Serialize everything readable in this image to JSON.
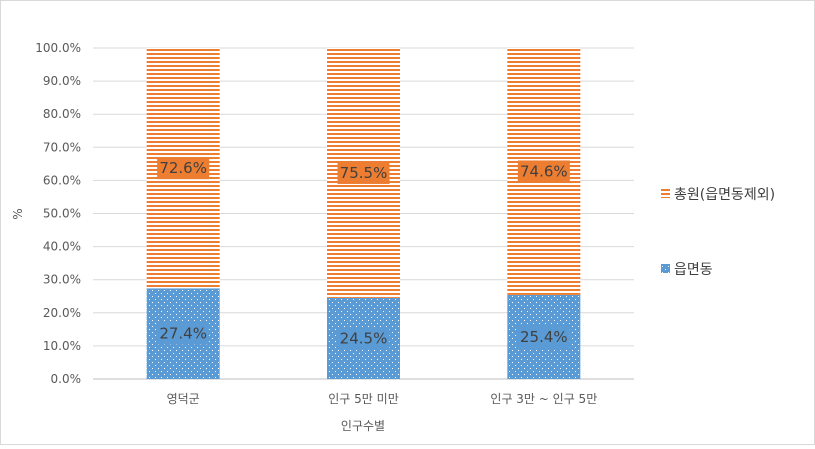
{
  "chart_data": {
    "type": "bar",
    "stacked": true,
    "percent_stacked": true,
    "categories": [
      "영덕군",
      "인구 5만 미만",
      "인구 3만 ~ 인구 5만"
    ],
    "series": [
      {
        "name": "읍면동",
        "values": [
          27.4,
          24.5,
          25.4
        ],
        "labels": [
          "27.4%",
          "24.5%",
          "25.4%"
        ],
        "color": "#5b9bd5",
        "pattern": "dots"
      },
      {
        "name": "총원(읍면동제외)",
        "values": [
          72.6,
          75.5,
          74.6
        ],
        "labels": [
          "72.6%",
          "75.5%",
          "74.6%"
        ],
        "color": "#ed7d31",
        "pattern": "horizontal-stripes"
      }
    ],
    "xlabel": "인구수별",
    "ylabel": "%",
    "ylim": [
      0,
      100
    ],
    "yticks": [
      "0.0%",
      "10.0%",
      "20.0%",
      "30.0%",
      "40.0%",
      "50.0%",
      "60.0%",
      "70.0%",
      "80.0%",
      "90.0%",
      "100.0%"
    ],
    "grid": true,
    "legend_position": "right",
    "legend_order": [
      "총원(읍면동제외)",
      "읍면동"
    ]
  }
}
